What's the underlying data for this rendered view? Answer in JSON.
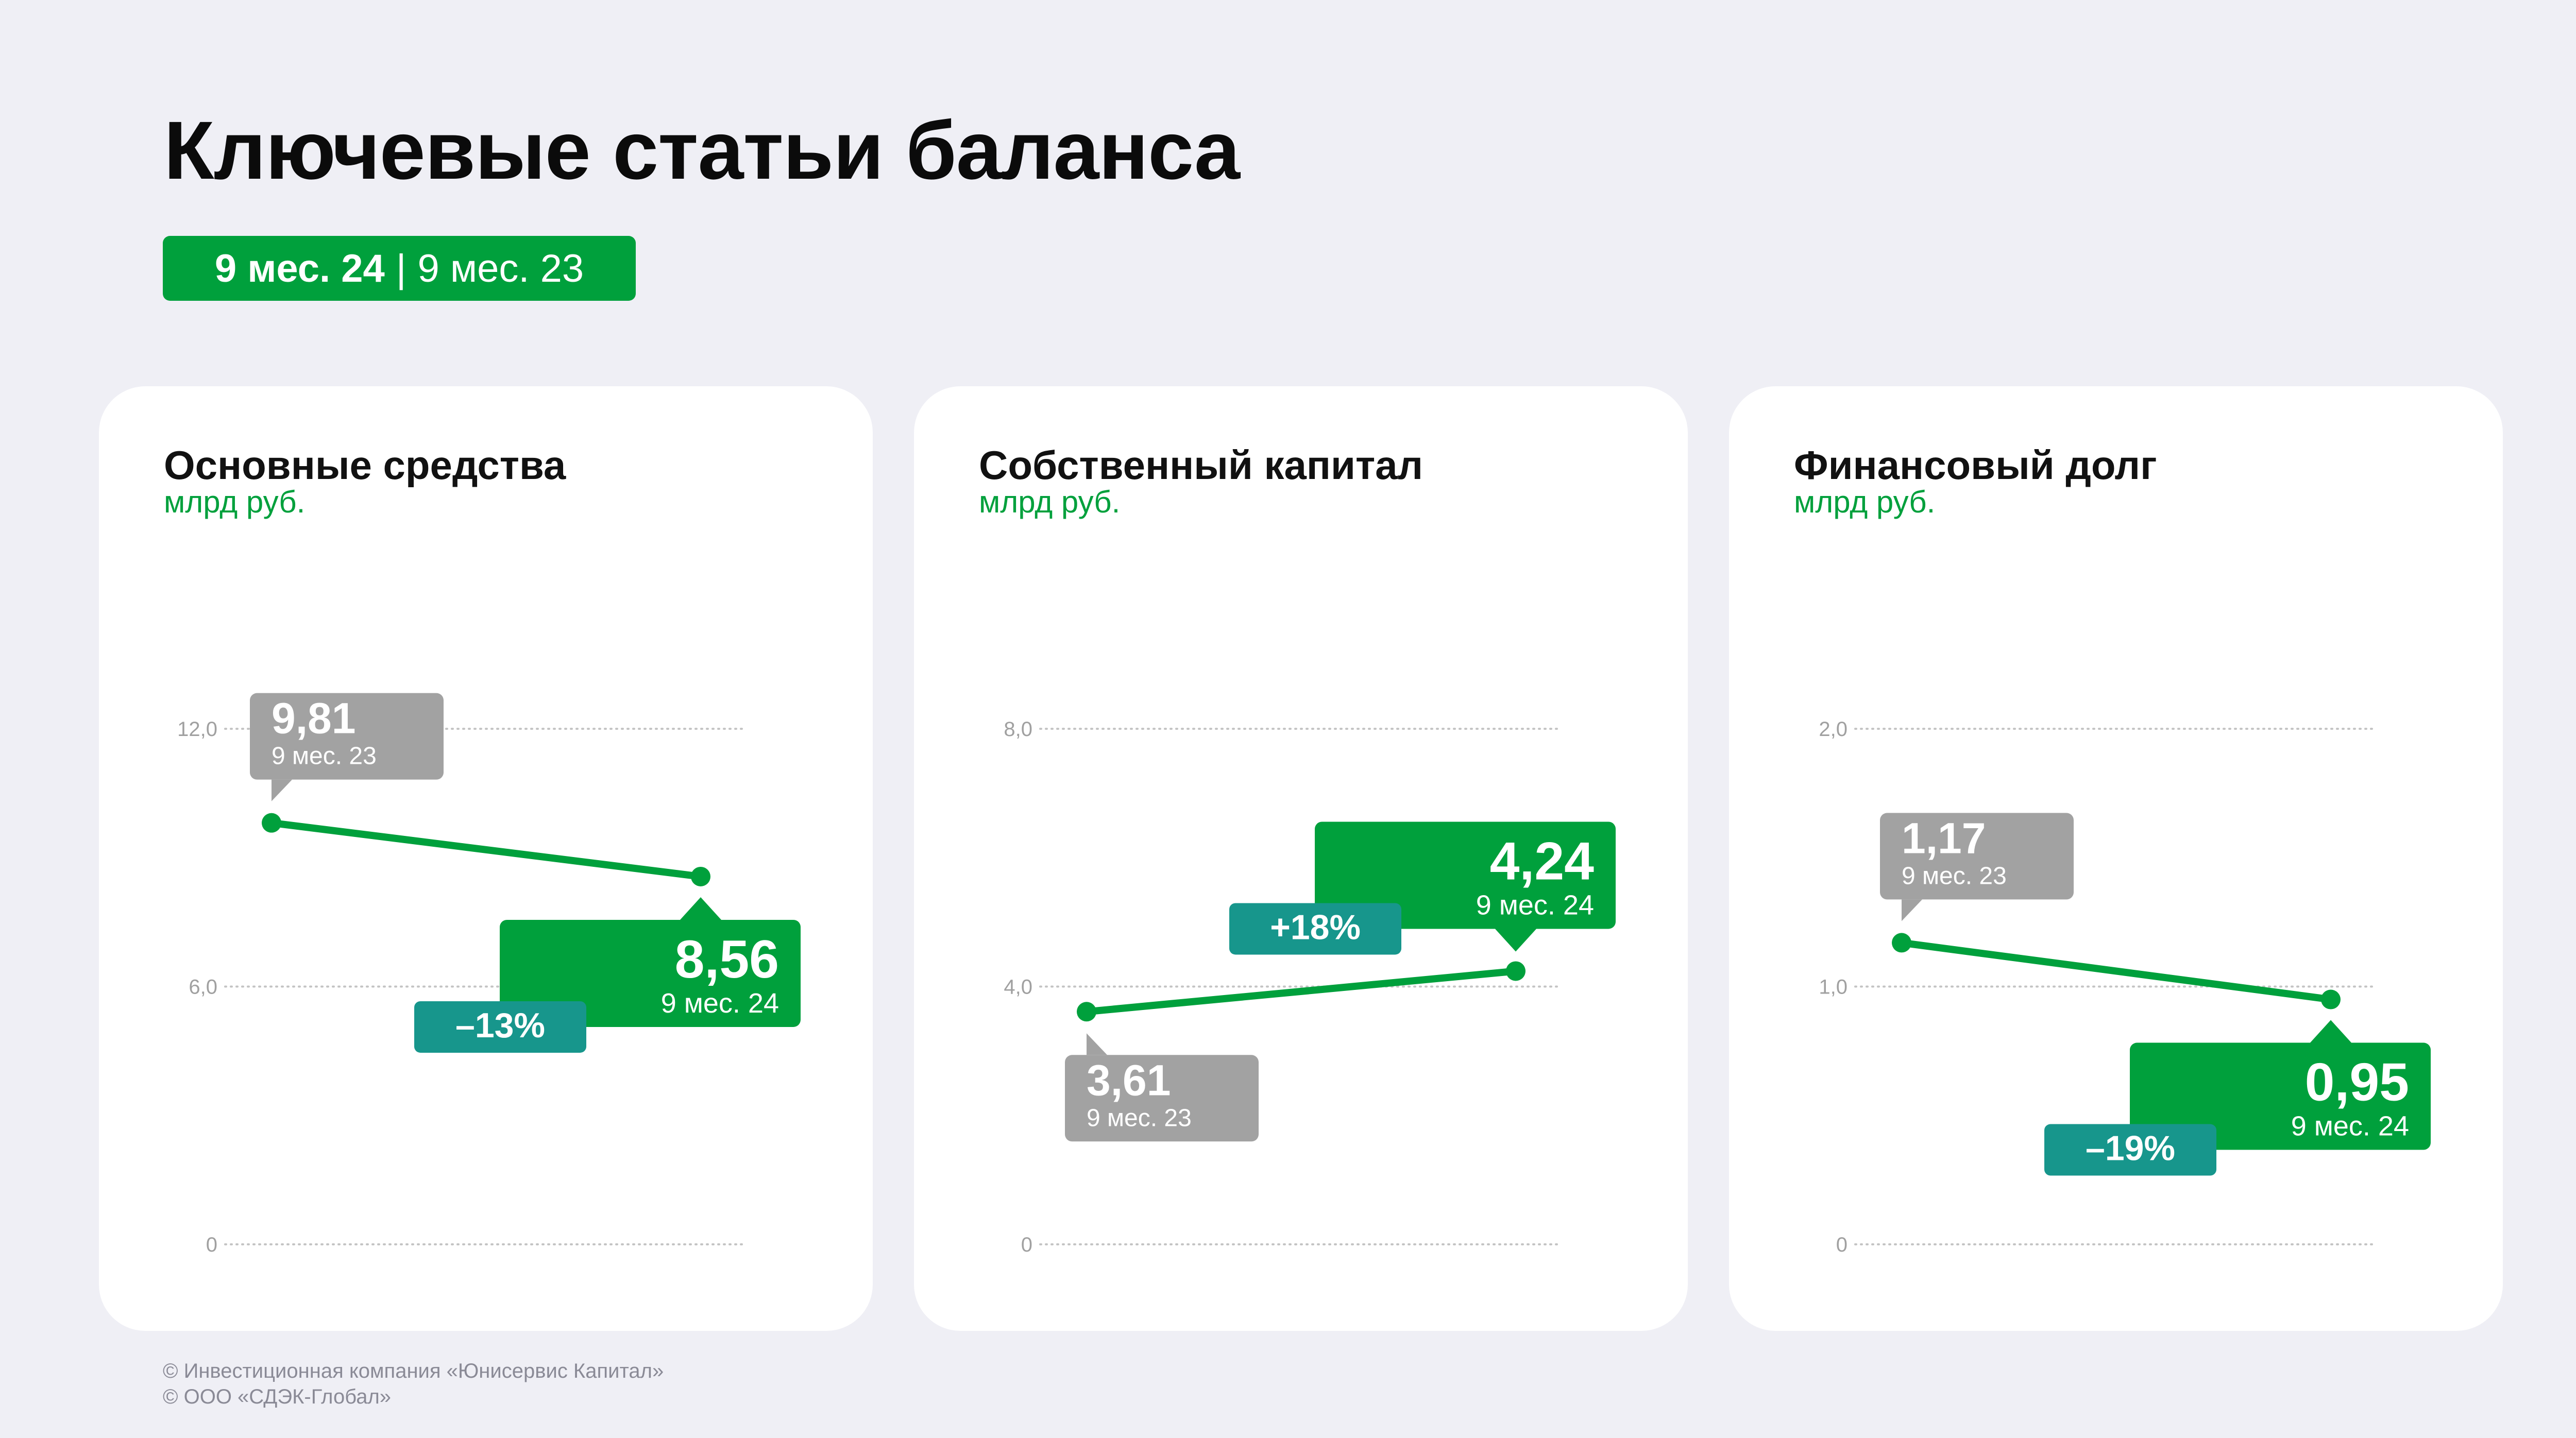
{
  "title": "Ключевые статьи баланса",
  "legend": {
    "current": "9 мес. 24",
    "separator": "|",
    "previous": "9 мес. 23"
  },
  "colors": {
    "green": "#00a03c",
    "gray": "#a2a2a2",
    "teal": "#17968c",
    "background": "#efeff5"
  },
  "chart_data": [
    {
      "type": "line",
      "title": "Основные средства",
      "unit": "млрд руб.",
      "categories": [
        "9 мес. 23",
        "9 мес. 24"
      ],
      "values": [
        9.81,
        8.56
      ],
      "value_labels": [
        "9,81",
        "8,56"
      ],
      "ylim": [
        0,
        12
      ],
      "yticks": [
        "0",
        "6,0",
        "12,0"
      ],
      "change": "–13%",
      "grid": true
    },
    {
      "type": "line",
      "title": "Собственный капитал",
      "unit": "млрд руб.",
      "categories": [
        "9 мес. 23",
        "9 мес. 24"
      ],
      "values": [
        3.61,
        4.24
      ],
      "value_labels": [
        "3,61",
        "4,24"
      ],
      "ylim": [
        0,
        8
      ],
      "yticks": [
        "0",
        "4,0",
        "8,0"
      ],
      "change": "+18%",
      "grid": true
    },
    {
      "type": "line",
      "title": "Финансовый долг",
      "unit": "млрд руб.",
      "categories": [
        "9 мес. 23",
        "9 мес. 24"
      ],
      "values": [
        1.17,
        0.95
      ],
      "value_labels": [
        "1,17",
        "0,95"
      ],
      "ylim": [
        0,
        2
      ],
      "yticks": [
        "0",
        "1,0",
        "2,0"
      ],
      "change": "–19%",
      "grid": true
    }
  ],
  "footer": [
    "© Инвестиционная компания «Юнисервис Капитал»",
    "© ООО «СДЭК-Глобал»"
  ]
}
